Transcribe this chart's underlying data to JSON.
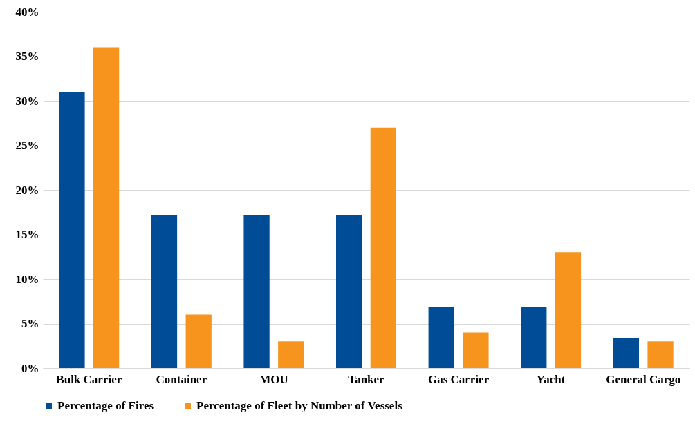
{
  "chart_data": {
    "type": "bar",
    "categories": [
      "Bulk Carrier",
      "Container",
      "MOU",
      "Tanker",
      "Gas Carrier",
      "Yacht",
      "General Cargo"
    ],
    "series": [
      {
        "name": "Percentage of Fires",
        "color": "#004c97",
        "values": [
          31,
          17.2,
          17.2,
          17.2,
          6.9,
          6.9,
          3.4
        ]
      },
      {
        "name": "Percentage of Fleet by Number of Vessels",
        "color": "#f7941d",
        "values": [
          36,
          6,
          3,
          27,
          4,
          13,
          3
        ]
      }
    ],
    "ylim": [
      0,
      40
    ],
    "yticks": [
      {
        "value": 0,
        "label": "0%"
      },
      {
        "value": 5,
        "label": "5%"
      },
      {
        "value": 10,
        "label": "10%"
      },
      {
        "value": 15,
        "label": "15%"
      },
      {
        "value": 20,
        "label": "20%"
      },
      {
        "value": 25,
        "label": "25%"
      },
      {
        "value": 30,
        "label": "30%"
      },
      {
        "value": 35,
        "label": "35%"
      },
      {
        "value": 40,
        "label": "40%"
      }
    ],
    "grid": "y",
    "legend": "bottom"
  }
}
